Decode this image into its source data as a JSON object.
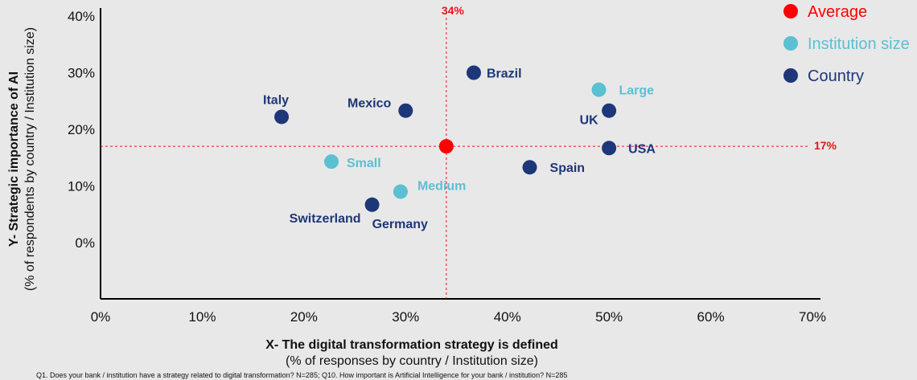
{
  "chart_data": {
    "type": "scatter",
    "xlabel": "X- The digital transformation strategy is defined",
    "xlabel_sub": "(% of responses by country / Institution size)",
    "ylabel": "Y- Strategic importance of AI",
    "ylabel_sub": "(% of respondents by country / Institution size)",
    "xlim": [
      0,
      70
    ],
    "ylim": [
      -10,
      42
    ],
    "x_ticks": [
      0,
      10,
      20,
      30,
      40,
      50,
      60,
      70
    ],
    "x_tick_labels": [
      "0%",
      "10%",
      "20%",
      "30%",
      "40%",
      "50%",
      "60%",
      "70%"
    ],
    "y_ticks": [
      0,
      10,
      20,
      30,
      40
    ],
    "y_tick_labels": [
      "0%",
      "10%",
      "20%",
      "30%",
      "40%"
    ],
    "reference_lines": {
      "x": 34,
      "x_label": "34%",
      "y": 17,
      "y_label": "17%",
      "color": "#e8131b",
      "style": "dashed"
    },
    "series": [
      {
        "name": "Average",
        "color": "#ff0000",
        "points": [
          {
            "label": "",
            "x": 34,
            "y": 17
          }
        ]
      },
      {
        "name": "Institution size",
        "color": "#5bc0d2",
        "points": [
          {
            "label": "Large",
            "x": 49,
            "y": 27
          },
          {
            "label": "Small",
            "x": 22.7,
            "y": 14.3
          },
          {
            "label": "Medium",
            "x": 29.5,
            "y": 9
          }
        ]
      },
      {
        "name": "Country",
        "color": "#1d3778",
        "points": [
          {
            "label": "Brazil",
            "x": 36.7,
            "y": 30
          },
          {
            "label": "Italy",
            "x": 17.8,
            "y": 22.2
          },
          {
            "label": "Mexico",
            "x": 30,
            "y": 23.3
          },
          {
            "label": "UK",
            "x": 50,
            "y": 23.3
          },
          {
            "label": "USA",
            "x": 50,
            "y": 16.7
          },
          {
            "label": "Spain",
            "x": 42.2,
            "y": 13.3
          },
          {
            "label": "Switzerland",
            "x": 26.7,
            "y": 6.7
          },
          {
            "label": "Germany",
            "x": 26.7,
            "y": 6.7
          }
        ]
      }
    ],
    "legend": {
      "position": "top-right",
      "entries": [
        "Average",
        "Institution size",
        "Country"
      ]
    },
    "grid": false
  },
  "footnote": "Q1. Does your bank / institution have a strategy related to digital transformation? N=285; Q10. How important is Artificial Intelligence for your bank / institution? N=285"
}
